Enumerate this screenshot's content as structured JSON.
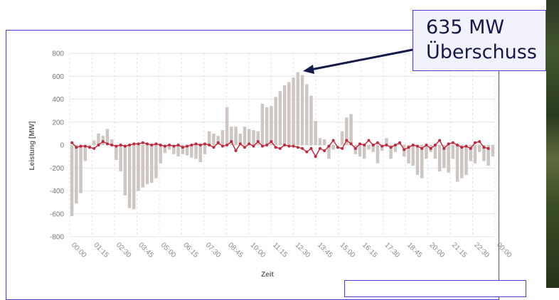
{
  "annotation": {
    "line1": "635 MW",
    "line2": "Überschuss"
  },
  "colors": {
    "bars": "#cdc6c2",
    "line": "#c0283c",
    "grid": "#e4e4e4",
    "frame": "#4a3fd0",
    "callout_text": "#141a4a"
  },
  "chart_data": {
    "type": "bar",
    "xlabel": "Zeit",
    "ylabel": "Leistung [MW]",
    "ylim": [
      -800,
      800
    ],
    "yticks": [
      800,
      600,
      400,
      200,
      0,
      -200,
      -400,
      -600,
      -800
    ],
    "xtick_labels": [
      "00:00",
      "01:15",
      "02:30",
      "03:45",
      "05:00",
      "06:15",
      "07:30",
      "08:45",
      "10:00",
      "11:15",
      "12:30",
      "13:45",
      "15:00",
      "16:15",
      "17:30",
      "18:45",
      "20:00",
      "21:15",
      "22:30",
      "00:00"
    ],
    "grid": true,
    "series": [
      {
        "kind": "bar",
        "values": [
          -620,
          -510,
          -420,
          -140,
          -20,
          40,
          100,
          80,
          140,
          50,
          -130,
          -230,
          -440,
          -550,
          -560,
          -400,
          -370,
          -340,
          -330,
          -290,
          -160,
          -70,
          -40,
          -80,
          -100,
          -80,
          -90,
          -110,
          -120,
          -150,
          -80,
          120,
          100,
          80,
          130,
          330,
          160,
          160,
          100,
          160,
          140,
          130,
          120,
          360,
          330,
          340,
          420,
          470,
          520,
          550,
          590,
          635,
          610,
          530,
          430,
          210,
          60,
          50,
          -120,
          -40,
          0,
          120,
          240,
          270,
          -80,
          -100,
          -120,
          -40,
          -60,
          -160,
          -50,
          60,
          -120,
          -60,
          20,
          -100,
          -160,
          -180,
          -260,
          -290,
          -120,
          -60,
          -120,
          -230,
          -200,
          -240,
          -120,
          -320,
          -290,
          -260,
          -140,
          -160,
          -60,
          -140,
          -180,
          -100
        ]
      },
      {
        "kind": "line",
        "values": [
          20,
          -20,
          -10,
          -10,
          -20,
          -30,
          0,
          30,
          10,
          0,
          -10,
          0,
          -10,
          0,
          10,
          10,
          20,
          10,
          0,
          10,
          0,
          -10,
          0,
          -10,
          0,
          -20,
          -10,
          0,
          10,
          0,
          10,
          0,
          -20,
          20,
          -10,
          0,
          30,
          -50,
          10,
          -20,
          10,
          -10,
          30,
          -10,
          0,
          30,
          -20,
          -30,
          0,
          -10,
          -10,
          -20,
          -30,
          -60,
          -30,
          -100,
          -30,
          -50,
          -10,
          40,
          -20,
          -30,
          40,
          10,
          -30,
          10,
          0,
          40,
          0,
          20,
          -10,
          0,
          -20,
          0,
          20,
          -40,
          -20,
          0,
          -10,
          -30,
          0,
          -30,
          0,
          40,
          -30,
          10,
          20,
          0,
          -20,
          -10,
          -30,
          20,
          30,
          -20,
          -30
        ]
      }
    ]
  }
}
